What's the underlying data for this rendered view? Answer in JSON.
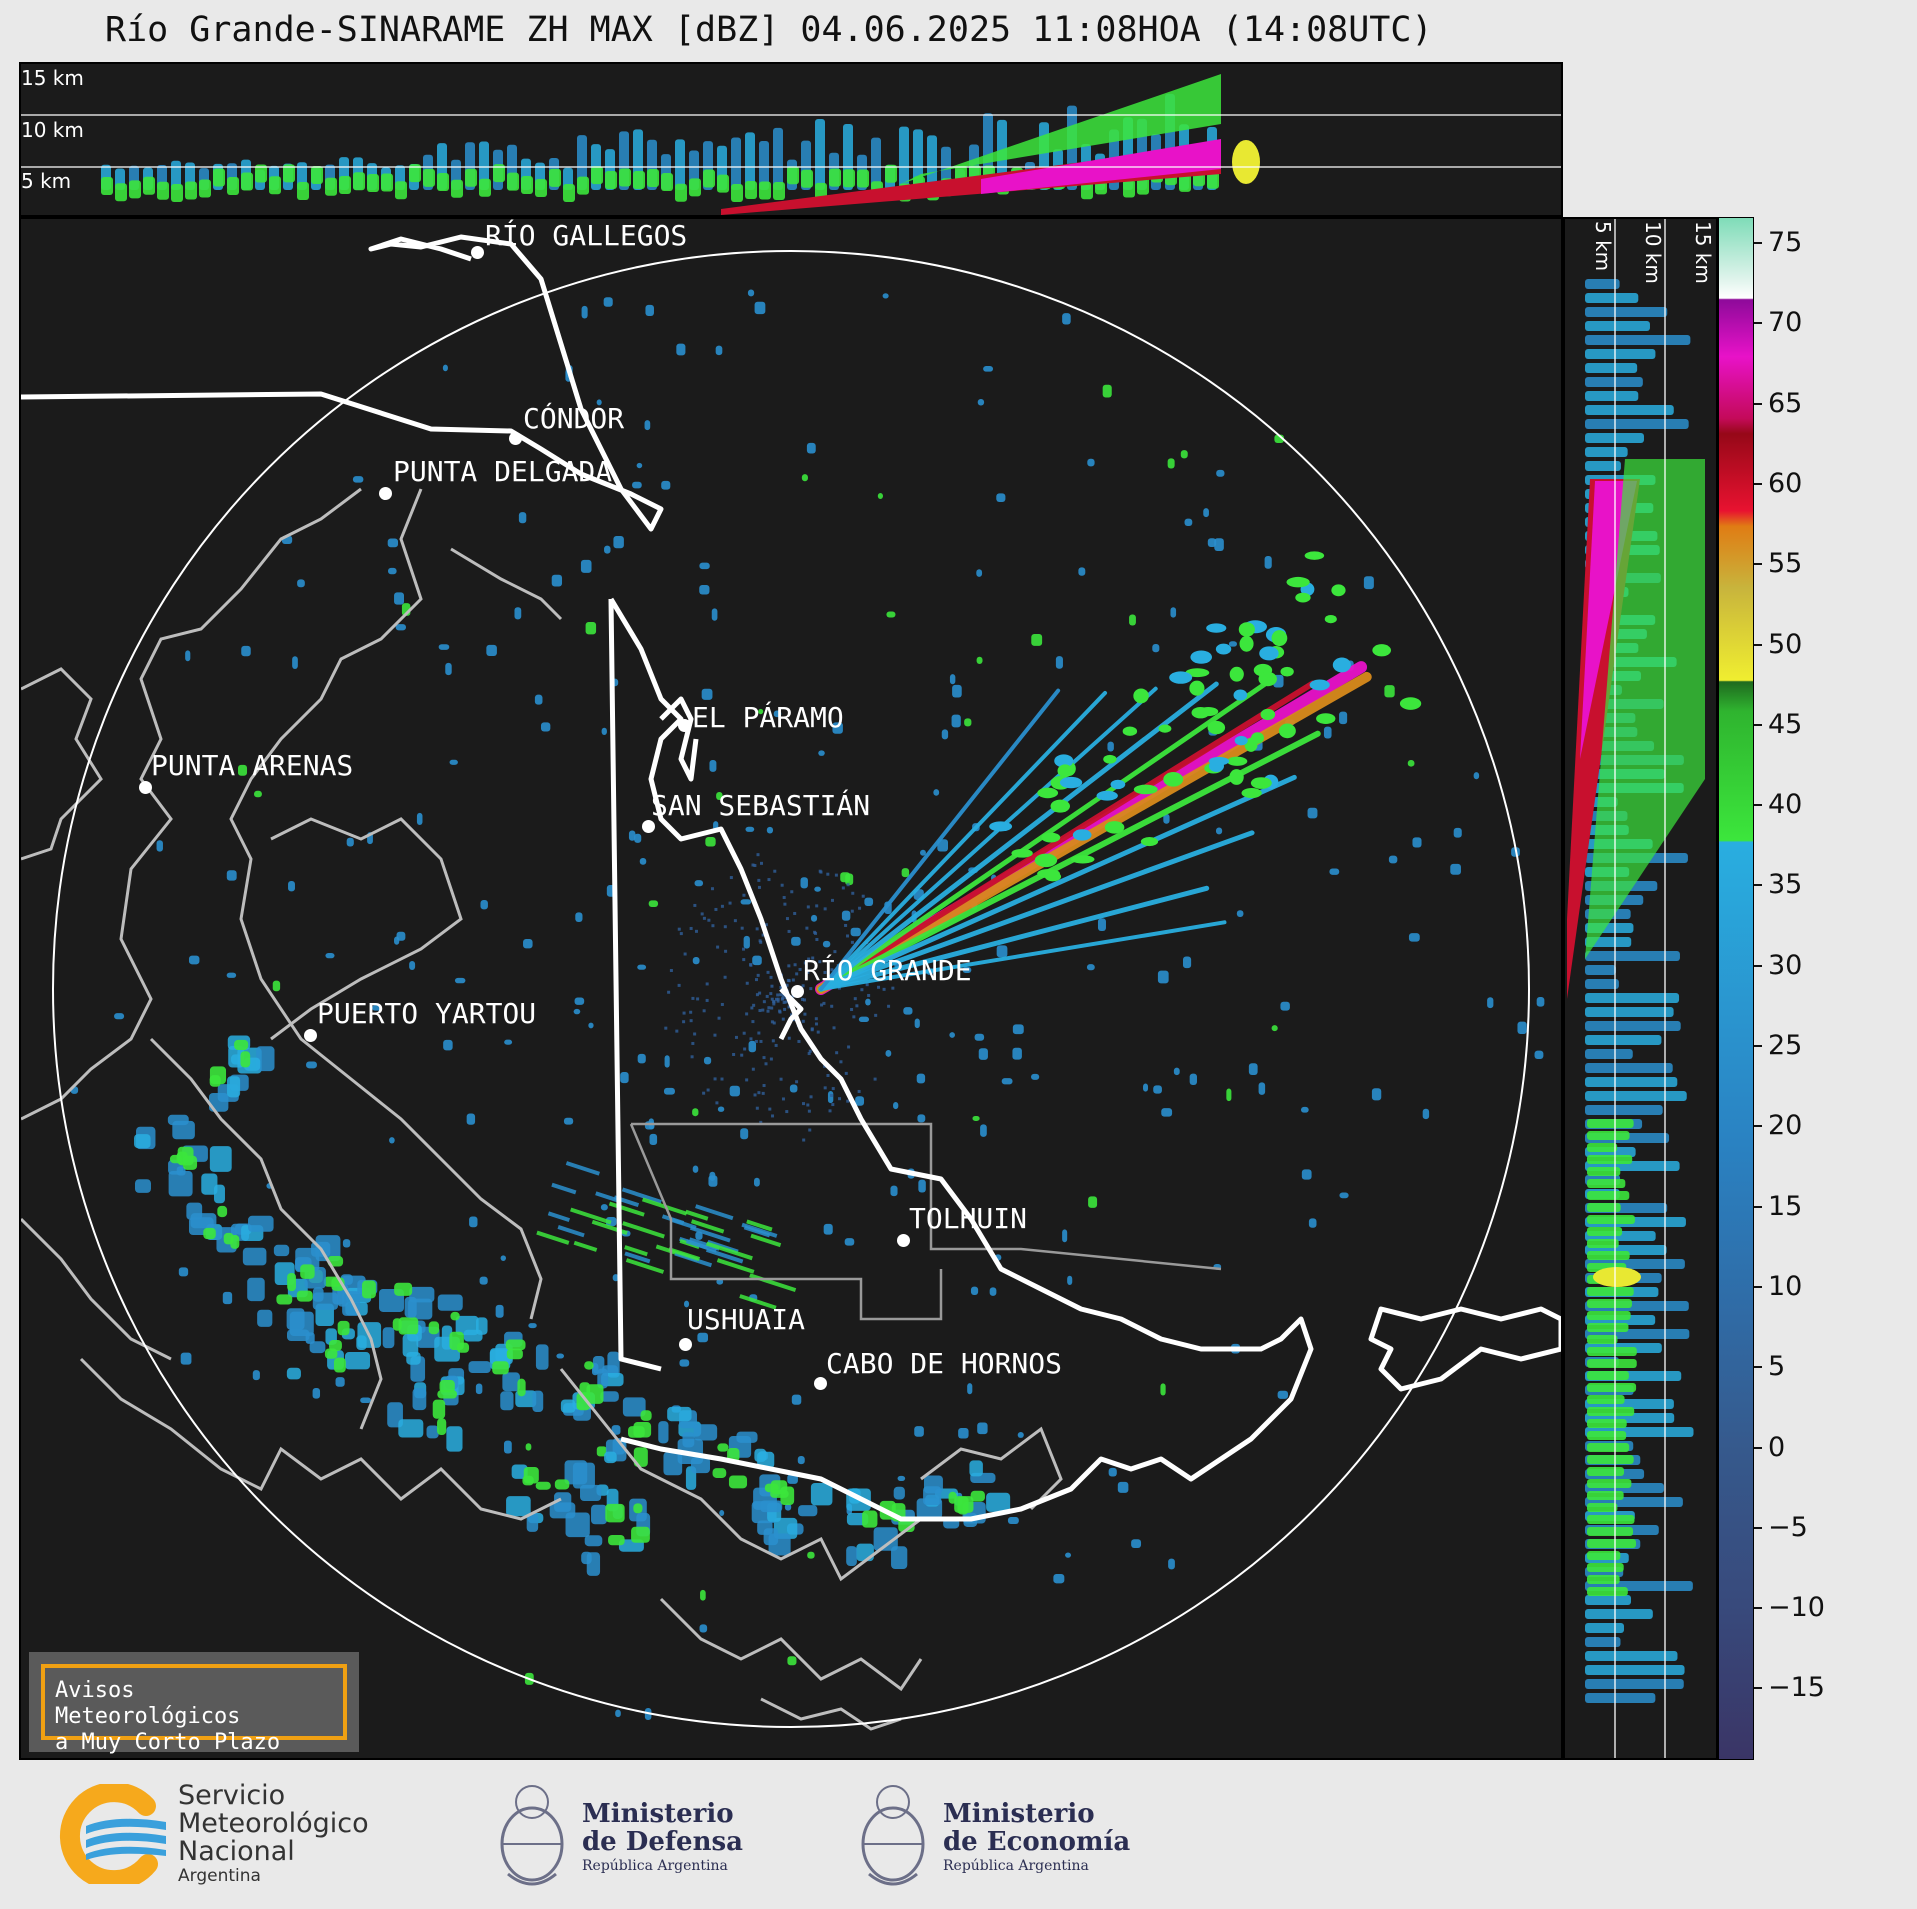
{
  "title": "Río Grande-SINARAME ZH MAX [dBZ] 04.06.2025 11:08HOA (14:08UTC)",
  "top_panel": {
    "altitudes": [
      "15 km",
      "10 km",
      "5 km"
    ]
  },
  "side_panel": {
    "altitudes": [
      "5 km",
      "10 km",
      "15 km"
    ]
  },
  "colorbar": {
    "ticks": [
      "75",
      "70",
      "65",
      "60",
      "55",
      "50",
      "45",
      "40",
      "35",
      "30",
      "25",
      "20",
      "15",
      "10",
      "5",
      "0",
      "−5",
      "−10",
      "−15"
    ],
    "colors": {
      "very_low": "#3a3f6e",
      "low": "#2f5f9a",
      "blue": "#2a8fce",
      "light_blue": "#29aee0",
      "green": "#2a8f2a",
      "bright_green": "#3ce63c",
      "yellow": "#e8e832",
      "orange": "#d88a1c",
      "red": "#c8102e",
      "magenta": "#e812c8",
      "purple": "#8e0a9a",
      "mint": "#8fe0c0"
    }
  },
  "cities": {
    "rio_gallegos": "RÍO GALLEGOS",
    "condor": "CÓNDOR",
    "punta_delgada": "PUNTA DELGADA",
    "el_paramo": "EL PÁRAMO",
    "punta_arenas": "PUNTA ARENAS",
    "san_sebastian": "SAN SEBASTIÁN",
    "rio_grande": "RÍO GRANDE",
    "puerto_yartou": "PUERTO YARTOU",
    "tolhuin": "TOLHUIN",
    "ushuaia": "USHUAIA",
    "cabo_de_hornos": "CABO DE HORNOS"
  },
  "warning_box": {
    "line1": "Avisos Meteorológicos",
    "line2": "a Muy Corto Plazo"
  },
  "footer": {
    "smn": {
      "line1": "Servicio",
      "line2": "Meteorológico",
      "line3": "Nacional",
      "line4": "Argentina"
    },
    "defensa": {
      "line1": "Ministerio",
      "line2": "de Defensa",
      "line3": "República Argentina"
    },
    "economia": {
      "line1": "Ministerio",
      "line2": "de Economía",
      "line3": "República Argentina"
    }
  }
}
